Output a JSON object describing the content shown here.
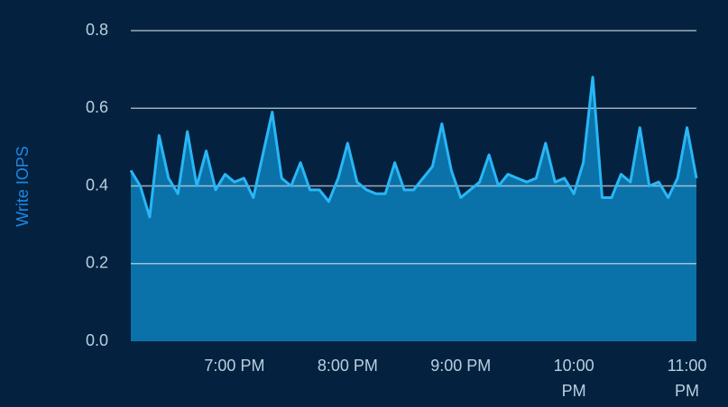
{
  "chart_data": {
    "type": "area",
    "y_label": "Write IOPS",
    "x": [
      1085,
      1090,
      1095,
      1100,
      1105,
      1110,
      1115,
      1120,
      1125,
      1130,
      1135,
      1140,
      1145,
      1150,
      1155,
      1160,
      1165,
      1170,
      1175,
      1180,
      1185,
      1190,
      1195,
      1200,
      1205,
      1210,
      1215,
      1220,
      1225,
      1230,
      1235,
      1240,
      1245,
      1250,
      1255,
      1260,
      1265,
      1270,
      1275,
      1280,
      1285,
      1290,
      1295,
      1300,
      1305,
      1310,
      1315,
      1320,
      1325,
      1330,
      1335,
      1340,
      1345,
      1350,
      1355,
      1360,
      1365,
      1370,
      1375,
      1380,
      1385
    ],
    "series": [
      {
        "name": "Write IOPS",
        "color": "#29b6f6",
        "fill": "#0a72a8",
        "values": [
          0.44,
          0.4,
          0.32,
          0.53,
          0.42,
          0.38,
          0.54,
          0.4,
          0.49,
          0.39,
          0.43,
          0.41,
          0.42,
          0.37,
          0.48,
          0.59,
          0.42,
          0.4,
          0.46,
          0.39,
          0.39,
          0.36,
          0.42,
          0.51,
          0.41,
          0.39,
          0.38,
          0.38,
          0.46,
          0.39,
          0.39,
          0.42,
          0.45,
          0.56,
          0.44,
          0.37,
          0.39,
          0.41,
          0.48,
          0.4,
          0.43,
          0.42,
          0.41,
          0.42,
          0.51,
          0.41,
          0.42,
          0.38,
          0.46,
          0.68,
          0.37,
          0.37,
          0.43,
          0.41,
          0.55,
          0.4,
          0.41,
          0.37,
          0.42,
          0.55,
          0.42
        ]
      }
    ],
    "xlim": [
      1085,
      1385
    ],
    "xticks": [
      {
        "value": 1140,
        "label": "7:00 PM"
      },
      {
        "value": 1200,
        "label": "8:00 PM"
      },
      {
        "value": 1260,
        "label": "9:00 PM"
      },
      {
        "value": 1320,
        "label": "10:00 PM"
      },
      {
        "value": 1380,
        "label": "11:00 PM"
      }
    ],
    "ylim": [
      0,
      0.8
    ],
    "yticks": [
      {
        "value": 0,
        "label": "0.0"
      },
      0.2,
      0.4,
      0.6,
      0.8
    ],
    "grid": true
  }
}
